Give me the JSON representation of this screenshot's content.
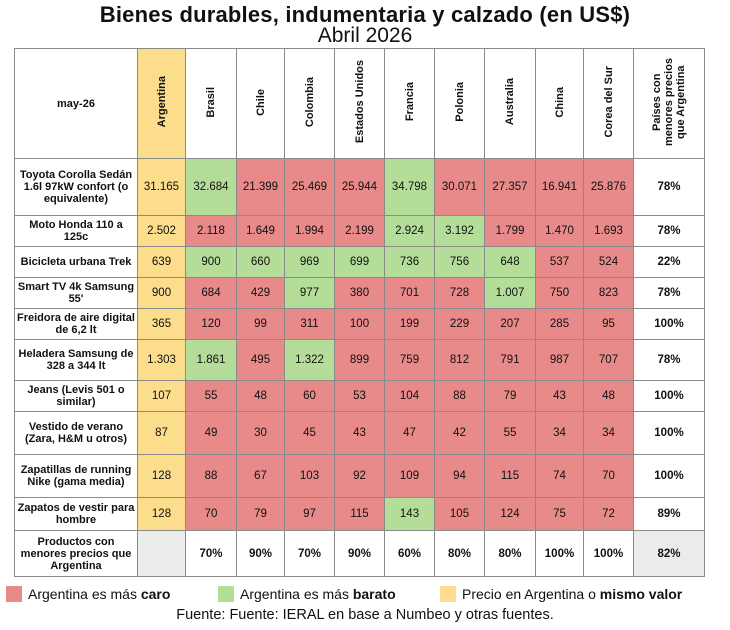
{
  "chart_data": {
    "type": "table",
    "title": "Bienes durables, indumentaria y calzado (en US$)",
    "subtitle": "Abril 2026",
    "corner_label": "may-26",
    "columns": [
      "Argentina",
      "Brasil",
      "Chile",
      "Colombia",
      "Estados Unidos",
      "Francia",
      "Polonia",
      "Australia",
      "China",
      "Corea del Sur"
    ],
    "share_header": "Países con menores precios que Argentina",
    "rows": [
      {
        "label": "Toyota Corolla Sedán 1.6l 97kW confort (o equivalente)",
        "values": [
          "31.165",
          "32.684",
          "21.399",
          "25.469",
          "25.944",
          "34.798",
          "30.071",
          "27.357",
          "16.941",
          "25.876"
        ],
        "colors": [
          "Y",
          "G",
          "R",
          "R",
          "R",
          "G",
          "R",
          "R",
          "R",
          "R"
        ],
        "share": "78%"
      },
      {
        "label": "Moto Honda 110 a 125c",
        "values": [
          "2.502",
          "2.118",
          "1.649",
          "1.994",
          "2.199",
          "2.924",
          "3.192",
          "1.799",
          "1.470",
          "1.693"
        ],
        "colors": [
          "Y",
          "R",
          "R",
          "R",
          "R",
          "G",
          "G",
          "R",
          "R",
          "R"
        ],
        "share": "78%"
      },
      {
        "label": "Bicicleta urbana Trek",
        "values": [
          "639",
          "900",
          "660",
          "969",
          "699",
          "736",
          "756",
          "648",
          "537",
          "524"
        ],
        "colors": [
          "Y",
          "G",
          "G",
          "G",
          "G",
          "G",
          "G",
          "G",
          "R",
          "R"
        ],
        "share": "22%"
      },
      {
        "label": "Smart TV 4k Samsung 55'",
        "values": [
          "900",
          "684",
          "429",
          "977",
          "380",
          "701",
          "728",
          "1.007",
          "750",
          "823"
        ],
        "colors": [
          "Y",
          "R",
          "R",
          "G",
          "R",
          "R",
          "R",
          "G",
          "R",
          "R"
        ],
        "share": "78%"
      },
      {
        "label": "Freidora de aire digital de 6,2 lt",
        "values": [
          "365",
          "120",
          "99",
          "311",
          "100",
          "199",
          "229",
          "207",
          "285",
          "95"
        ],
        "colors": [
          "Y",
          "R",
          "R",
          "R",
          "R",
          "R",
          "R",
          "R",
          "R",
          "R"
        ],
        "share": "100%"
      },
      {
        "label": "Heladera Samsung de 328 a 344 lt",
        "values": [
          "1.303",
          "1.861",
          "495",
          "1.322",
          "899",
          "759",
          "812",
          "791",
          "987",
          "707"
        ],
        "colors": [
          "Y",
          "G",
          "R",
          "G",
          "R",
          "R",
          "R",
          "R",
          "R",
          "R"
        ],
        "share": "78%"
      },
      {
        "label": "Jeans (Levis 501 o similar)",
        "values": [
          "107",
          "55",
          "48",
          "60",
          "53",
          "104",
          "88",
          "79",
          "43",
          "48"
        ],
        "colors": [
          "Y",
          "R",
          "R",
          "R",
          "R",
          "R",
          "R",
          "R",
          "R",
          "R"
        ],
        "share": "100%"
      },
      {
        "label": "Vestido de verano (Zara, H&M u otros)",
        "values": [
          "87",
          "49",
          "30",
          "45",
          "43",
          "47",
          "42",
          "55",
          "34",
          "34"
        ],
        "colors": [
          "Y",
          "R",
          "R",
          "R",
          "R",
          "R",
          "R",
          "R",
          "R",
          "R"
        ],
        "share": "100%"
      },
      {
        "label": "Zapatillas de running Nike (gama media)",
        "values": [
          "128",
          "88",
          "67",
          "103",
          "92",
          "109",
          "94",
          "115",
          "74",
          "70"
        ],
        "colors": [
          "Y",
          "R",
          "R",
          "R",
          "R",
          "R",
          "R",
          "R",
          "R",
          "R"
        ],
        "share": "100%"
      },
      {
        "label": "Zapatos de vestir para hombre",
        "values": [
          "128",
          "70",
          "79",
          "97",
          "115",
          "143",
          "105",
          "124",
          "75",
          "72"
        ],
        "colors": [
          "Y",
          "R",
          "R",
          "R",
          "R",
          "G",
          "R",
          "R",
          "R",
          "R"
        ],
        "share": "89%"
      }
    ],
    "summary": {
      "label": "Productos con menores precios que Argentina",
      "values": [
        "",
        "70%",
        "90%",
        "70%",
        "90%",
        "60%",
        "80%",
        "80%",
        "100%",
        "100%"
      ],
      "share": "82%"
    }
  },
  "colors": {
    "red": "#e8898a",
    "green": "#b5dd9a",
    "yellow": "#fbdd8c"
  },
  "legend": {
    "caro_prefix": "Argentina es más ",
    "caro_bold": "caro",
    "barato_prefix": "Argentina es más ",
    "barato_bold": "barato",
    "mismo_prefix": "Precio en Argentina o ",
    "mismo_bold": "mismo valor"
  },
  "source": "Fuente: Fuente: IERAL en base a Numbeo y otras fuentes."
}
